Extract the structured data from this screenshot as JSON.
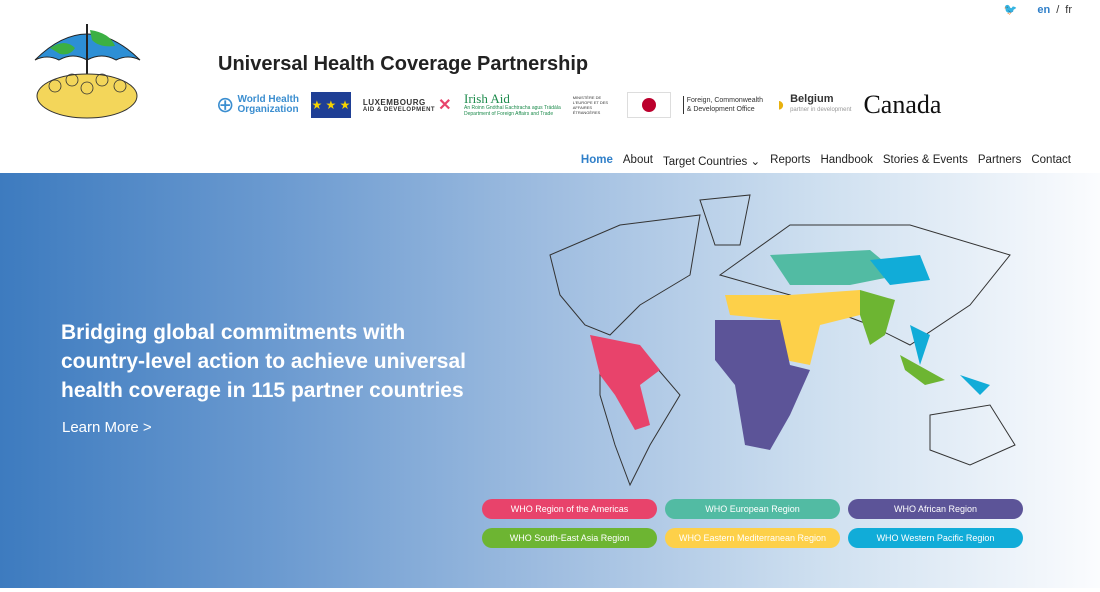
{
  "topbar": {
    "twitter_icon": "twitter-icon",
    "lang_en": "en",
    "lang_sep": "/",
    "lang_fr": "fr"
  },
  "header": {
    "title": "Universal Health Coverage Partnership"
  },
  "partners": {
    "who": [
      "World Health",
      "Organization"
    ],
    "eu_stars": "★ ★ ★",
    "lux": [
      "LUXEMBOURG",
      "AID & DEVELOPMENT"
    ],
    "irish": [
      "Irish Aid",
      "An Roinn Gnóthaí Eachtracha agus Trádála",
      "Department of Foreign Affairs and Trade"
    ],
    "france": "MINISTÈRE DE L'EUROPE ET DES AFFAIRES ÉTRANGÈRES",
    "uk": [
      "Foreign, Commonwealth",
      "& Development Office"
    ],
    "belgium": [
      "Belgium",
      "partner in development"
    ],
    "canada": "Canada"
  },
  "nav": {
    "items": [
      "Home",
      "About",
      "Target Countries ⌄",
      "Reports",
      "Handbook",
      "Stories & Events",
      "Partners",
      "Contact"
    ],
    "active": "Home"
  },
  "hero": {
    "headline": "Bridging global commitments with country-level action to achieve universal health coverage in 115 partner countries",
    "learn_more": "Learn More >"
  },
  "regions": [
    {
      "label": "WHO Region of the Americas",
      "color": "#e8436b"
    },
    {
      "label": "WHO European Region",
      "color": "#52bba3"
    },
    {
      "label": "WHO African Region",
      "color": "#5c5498"
    },
    {
      "label": "WHO South-East Asia Region",
      "color": "#6db532"
    },
    {
      "label": "WHO Eastern Mediterranean Region",
      "color": "#fdd049"
    },
    {
      "label": "WHO Western Pacific Region",
      "color": "#11acd8"
    }
  ]
}
